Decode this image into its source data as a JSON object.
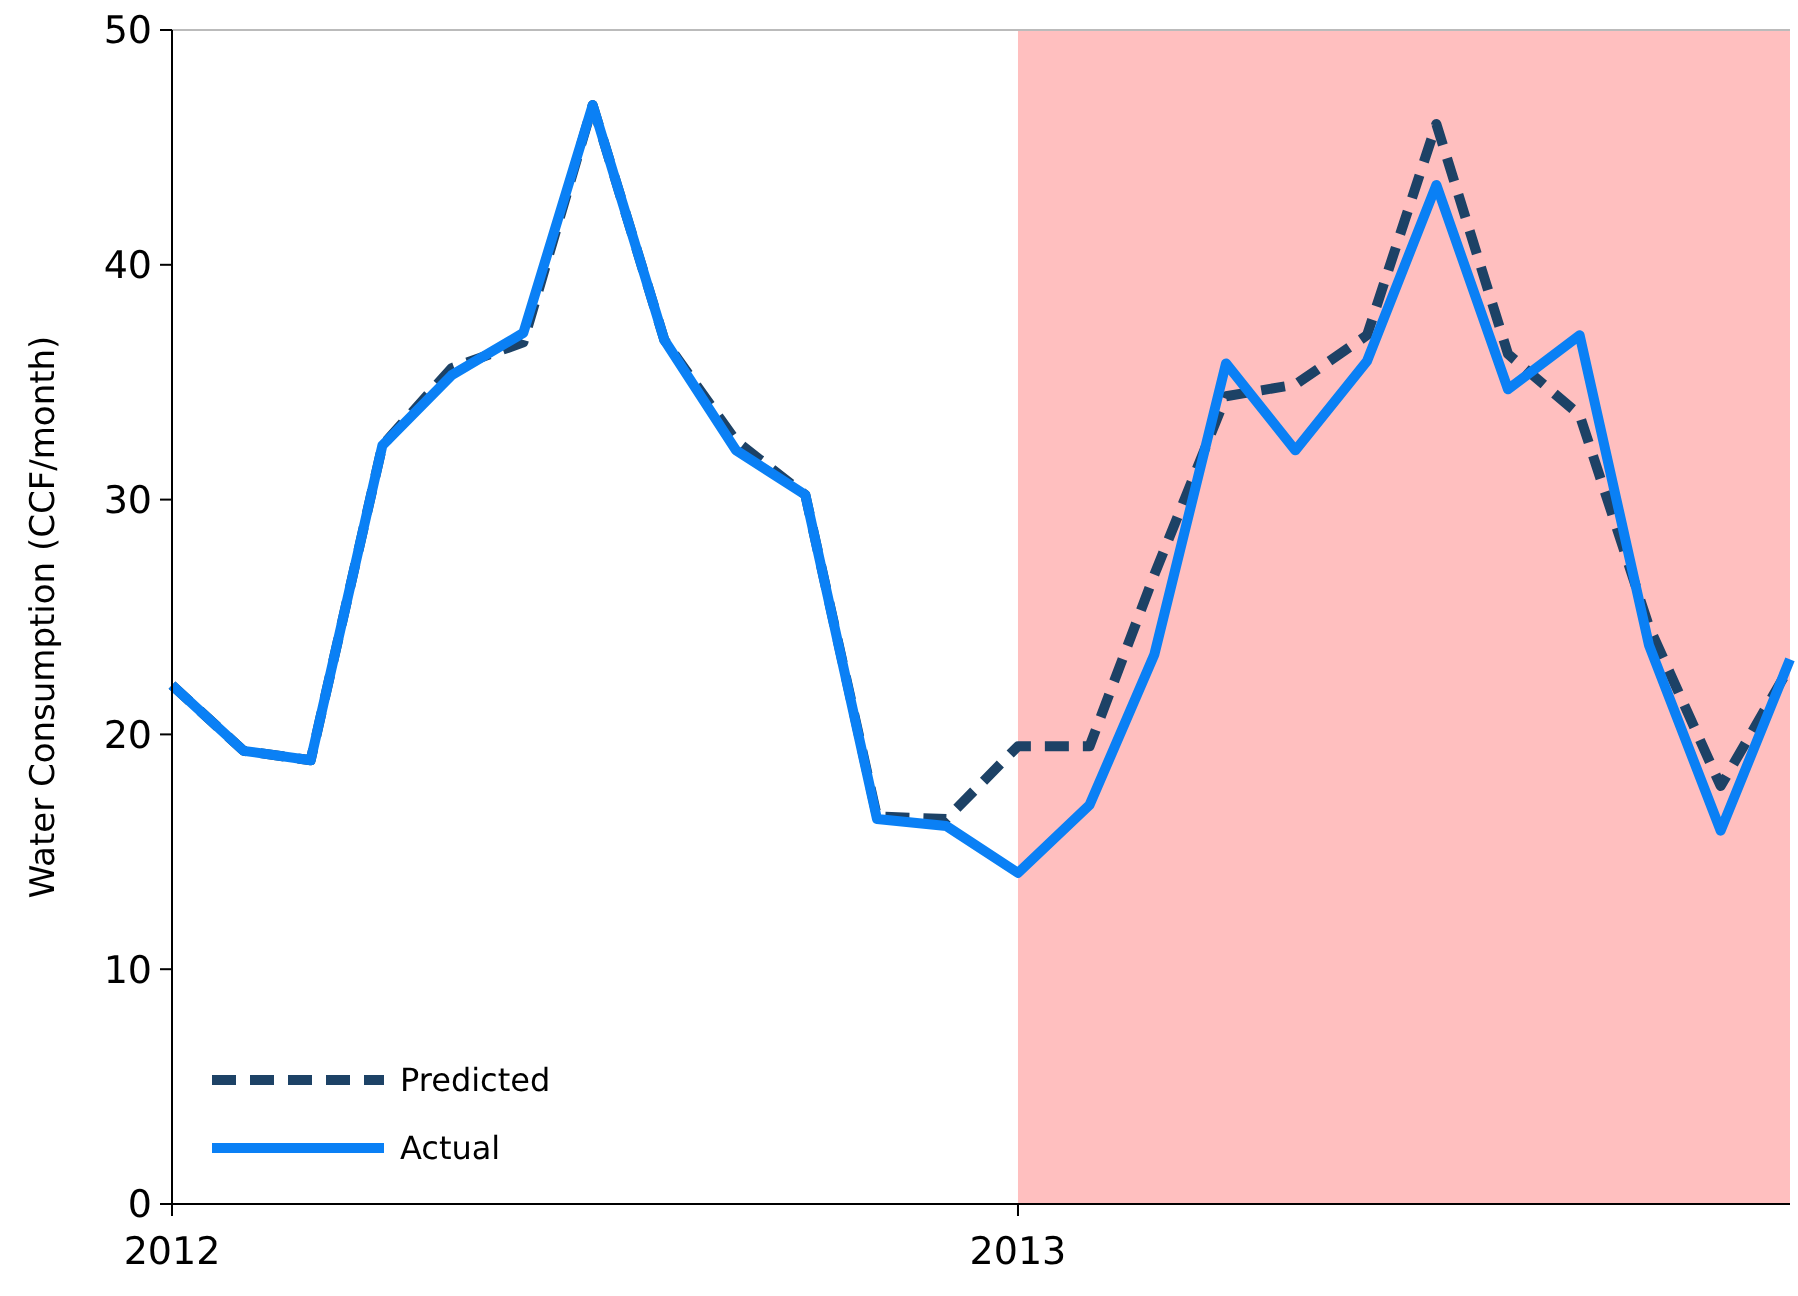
{
  "chart_data": {
    "type": "line",
    "ylabel": "Water Consumption (CCF/month)",
    "x": [
      "2012-01",
      "2012-02",
      "2012-03",
      "2012-04",
      "2012-05",
      "2012-06",
      "2012-07",
      "2012-08",
      "2012-09",
      "2012-10",
      "2012-11",
      "2012-12",
      "2013-01",
      "2013-02",
      "2013-03",
      "2013-04",
      "2013-05",
      "2013-06",
      "2013-07",
      "2013-08",
      "2013-09",
      "2013-10",
      "2013-11",
      "2013-12"
    ],
    "series": [
      {
        "name": "Predicted",
        "color": "#1d4266",
        "line_style": "dashed",
        "values": [
          22.1,
          19.3,
          18.9,
          32.3,
          35.6,
          36.7,
          46.8,
          36.8,
          32.5,
          30.2,
          16.5,
          16.4,
          19.5,
          19.5,
          26.8,
          34.4,
          34.9,
          37.0,
          46.0,
          36.2,
          33.6,
          24.6,
          17.8,
          22.9
        ]
      },
      {
        "name": "Actual",
        "color": "#0a80f5",
        "line_style": "solid",
        "values": [
          22.1,
          19.3,
          18.9,
          32.3,
          35.3,
          37.1,
          46.8,
          36.8,
          32.1,
          30.2,
          16.4,
          16.1,
          14.1,
          17.0,
          23.4,
          35.8,
          32.1,
          35.9,
          43.4,
          34.7,
          37.0,
          23.8,
          15.9,
          23.2
        ]
      }
    ],
    "xlim": [
      "2012-01",
      "2013-12"
    ],
    "xticks": [
      "2012",
      "2013"
    ],
    "ylim": [
      0,
      50
    ],
    "yticks": [
      0,
      10,
      20,
      30,
      40,
      50
    ],
    "bands": [
      {
        "axis": "x",
        "from": "2013-01",
        "to": "2013-12",
        "color": "#ffbfbf"
      }
    ],
    "grid": false,
    "legend": "bottom left"
  }
}
